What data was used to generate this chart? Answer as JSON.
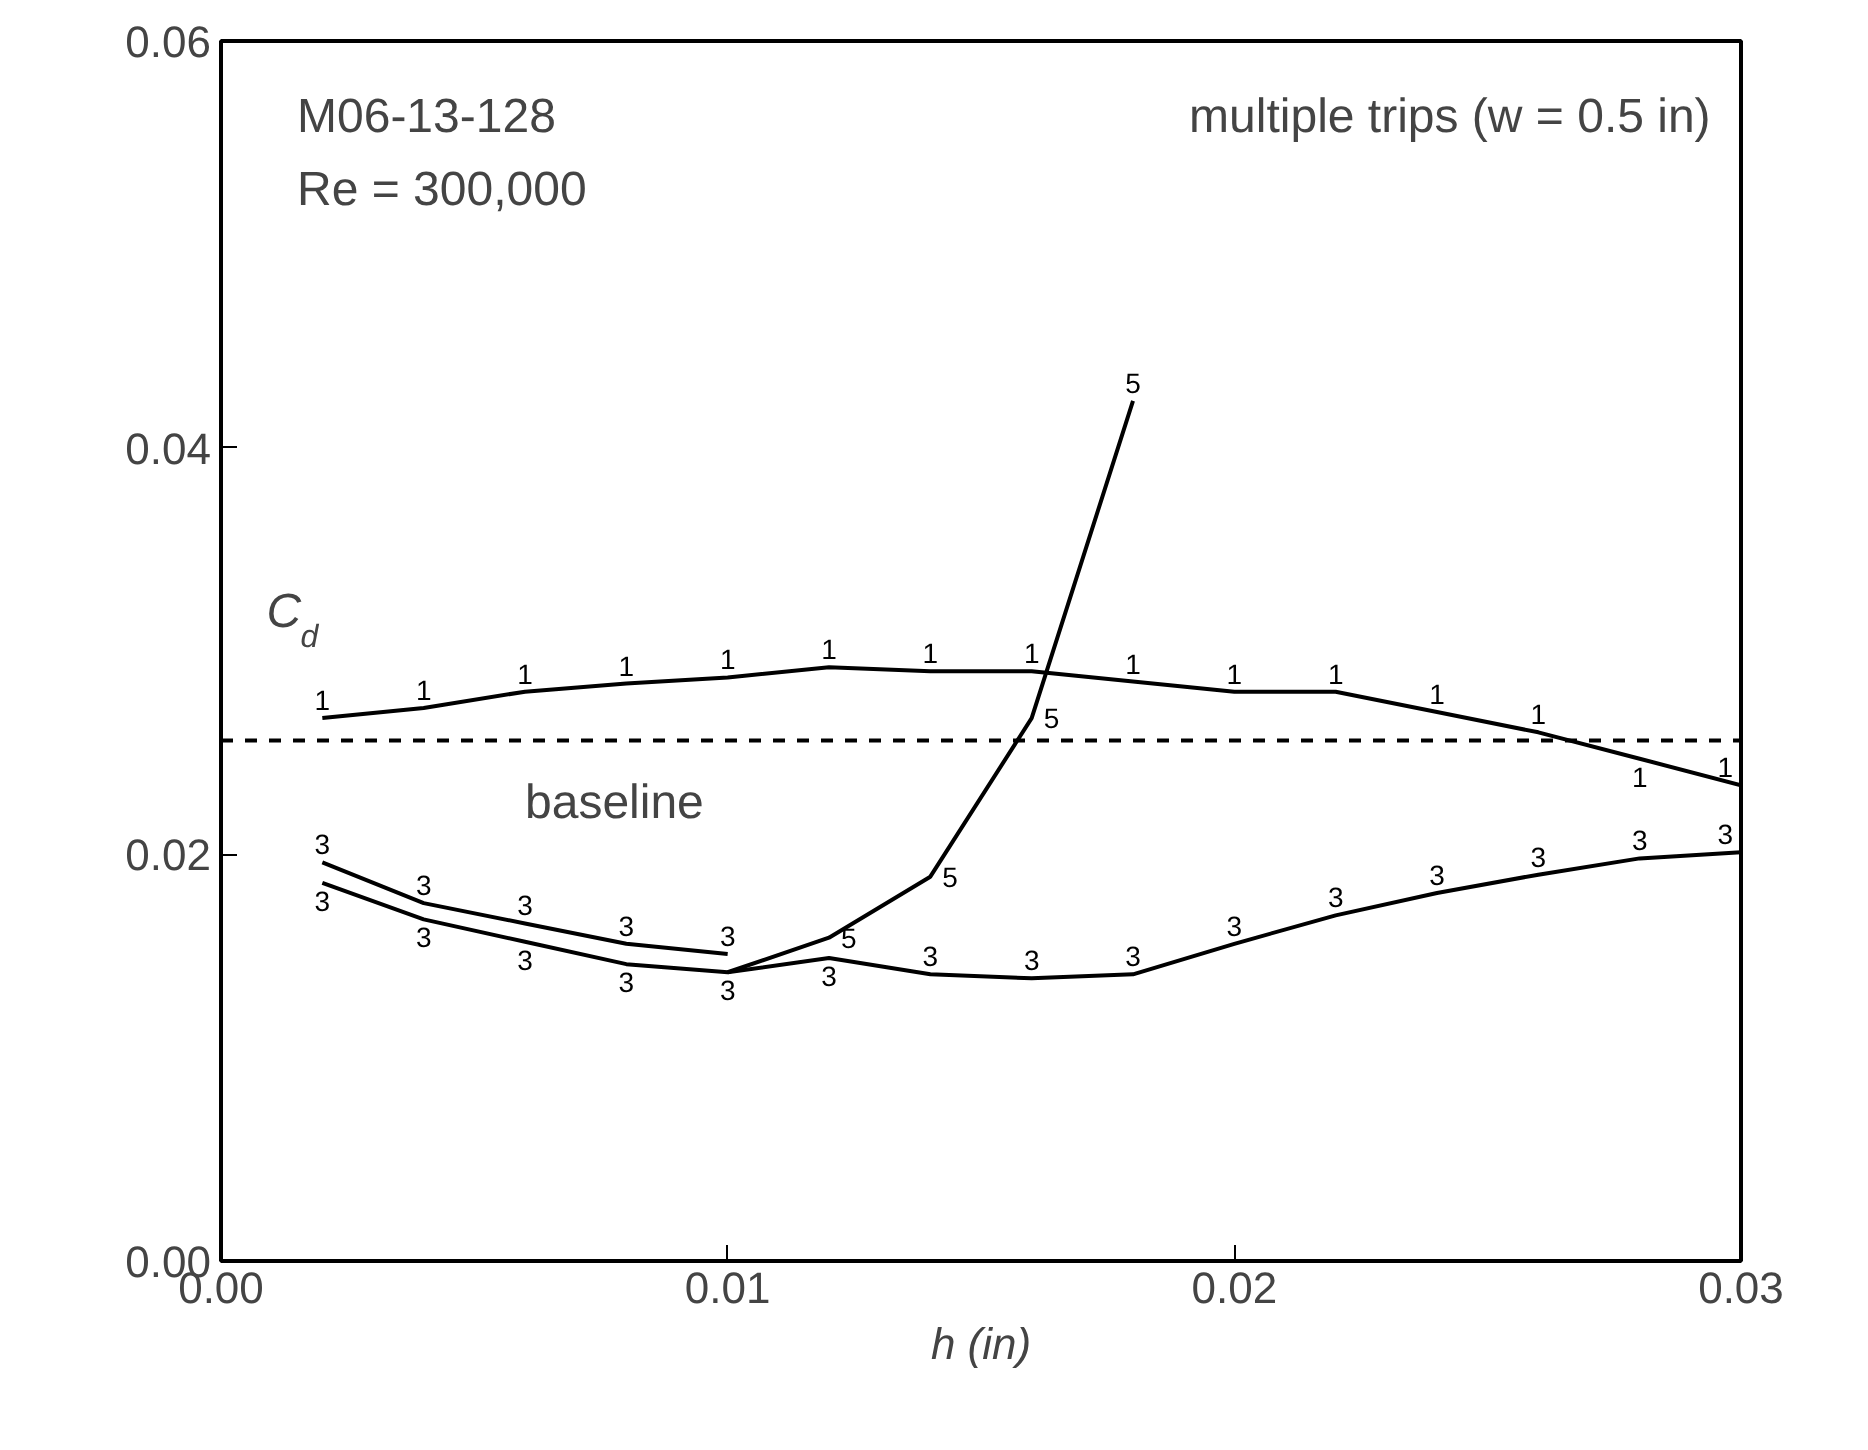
{
  "chart_data": {
    "type": "line",
    "xlabel": "h (in)",
    "ylabel": "C$_{d}$",
    "annotations": [
      "M06-13-128",
      "Re = 300,000",
      "multiple trips (w = 0.5 in)"
    ],
    "x": [
      0.002,
      0.004,
      0.006,
      0.008,
      0.01,
      0.012,
      0.014,
      0.016,
      0.018,
      0.02,
      0.022,
      0.024,
      0.026,
      0.028,
      0.03
    ],
    "series": [
      {
        "name": "1",
        "color": "#000000",
        "values": [
          0.0267,
          0.0272,
          0.028,
          0.0284,
          0.0287,
          0.0292,
          0.029,
          0.029,
          0.0285,
          0.028,
          0.028,
          0.027,
          0.026,
          0.0247,
          0.0234
        ]
      },
      {
        "name": "3",
        "color": "#000000",
        "x": [
          0.002,
          0.004,
          0.006,
          0.008,
          0.01
        ],
        "values": [
          0.0196,
          0.0176,
          0.0166,
          0.0156,
          0.0151
        ]
      },
      {
        "name": "3",
        "color": "#000000",
        "values": [
          0.0186,
          0.0168,
          0.0157,
          0.0146,
          0.0142,
          0.0149,
          0.0141,
          0.0139,
          0.0141,
          0.0156,
          0.017,
          0.0181,
          0.019,
          0.0198,
          0.0201
        ]
      },
      {
        "name": "5",
        "color": "#000000",
        "x": [
          0.01,
          0.012,
          0.014,
          0.016,
          0.018
        ],
        "values": [
          0.0142,
          0.0159,
          0.0189,
          0.0267,
          0.0423
        ]
      }
    ],
    "ref_lines": [
      {
        "axis": "y",
        "value": 0.0256,
        "label": "baseline",
        "line_style": "dashed",
        "color": "#000000"
      }
    ],
    "xlim": [
      0.0,
      0.03
    ],
    "ylim": [
      0.0,
      0.06
    ],
    "xticks": [
      {
        "value": 0.0,
        "label": "0.00"
      },
      0.01,
      0.02,
      0.03
    ],
    "yticks": [
      {
        "value": 0.0,
        "label": "0.00"
      },
      0.02,
      0.04,
      0.06
    ],
    "grid": false,
    "line_style": "solid"
  }
}
